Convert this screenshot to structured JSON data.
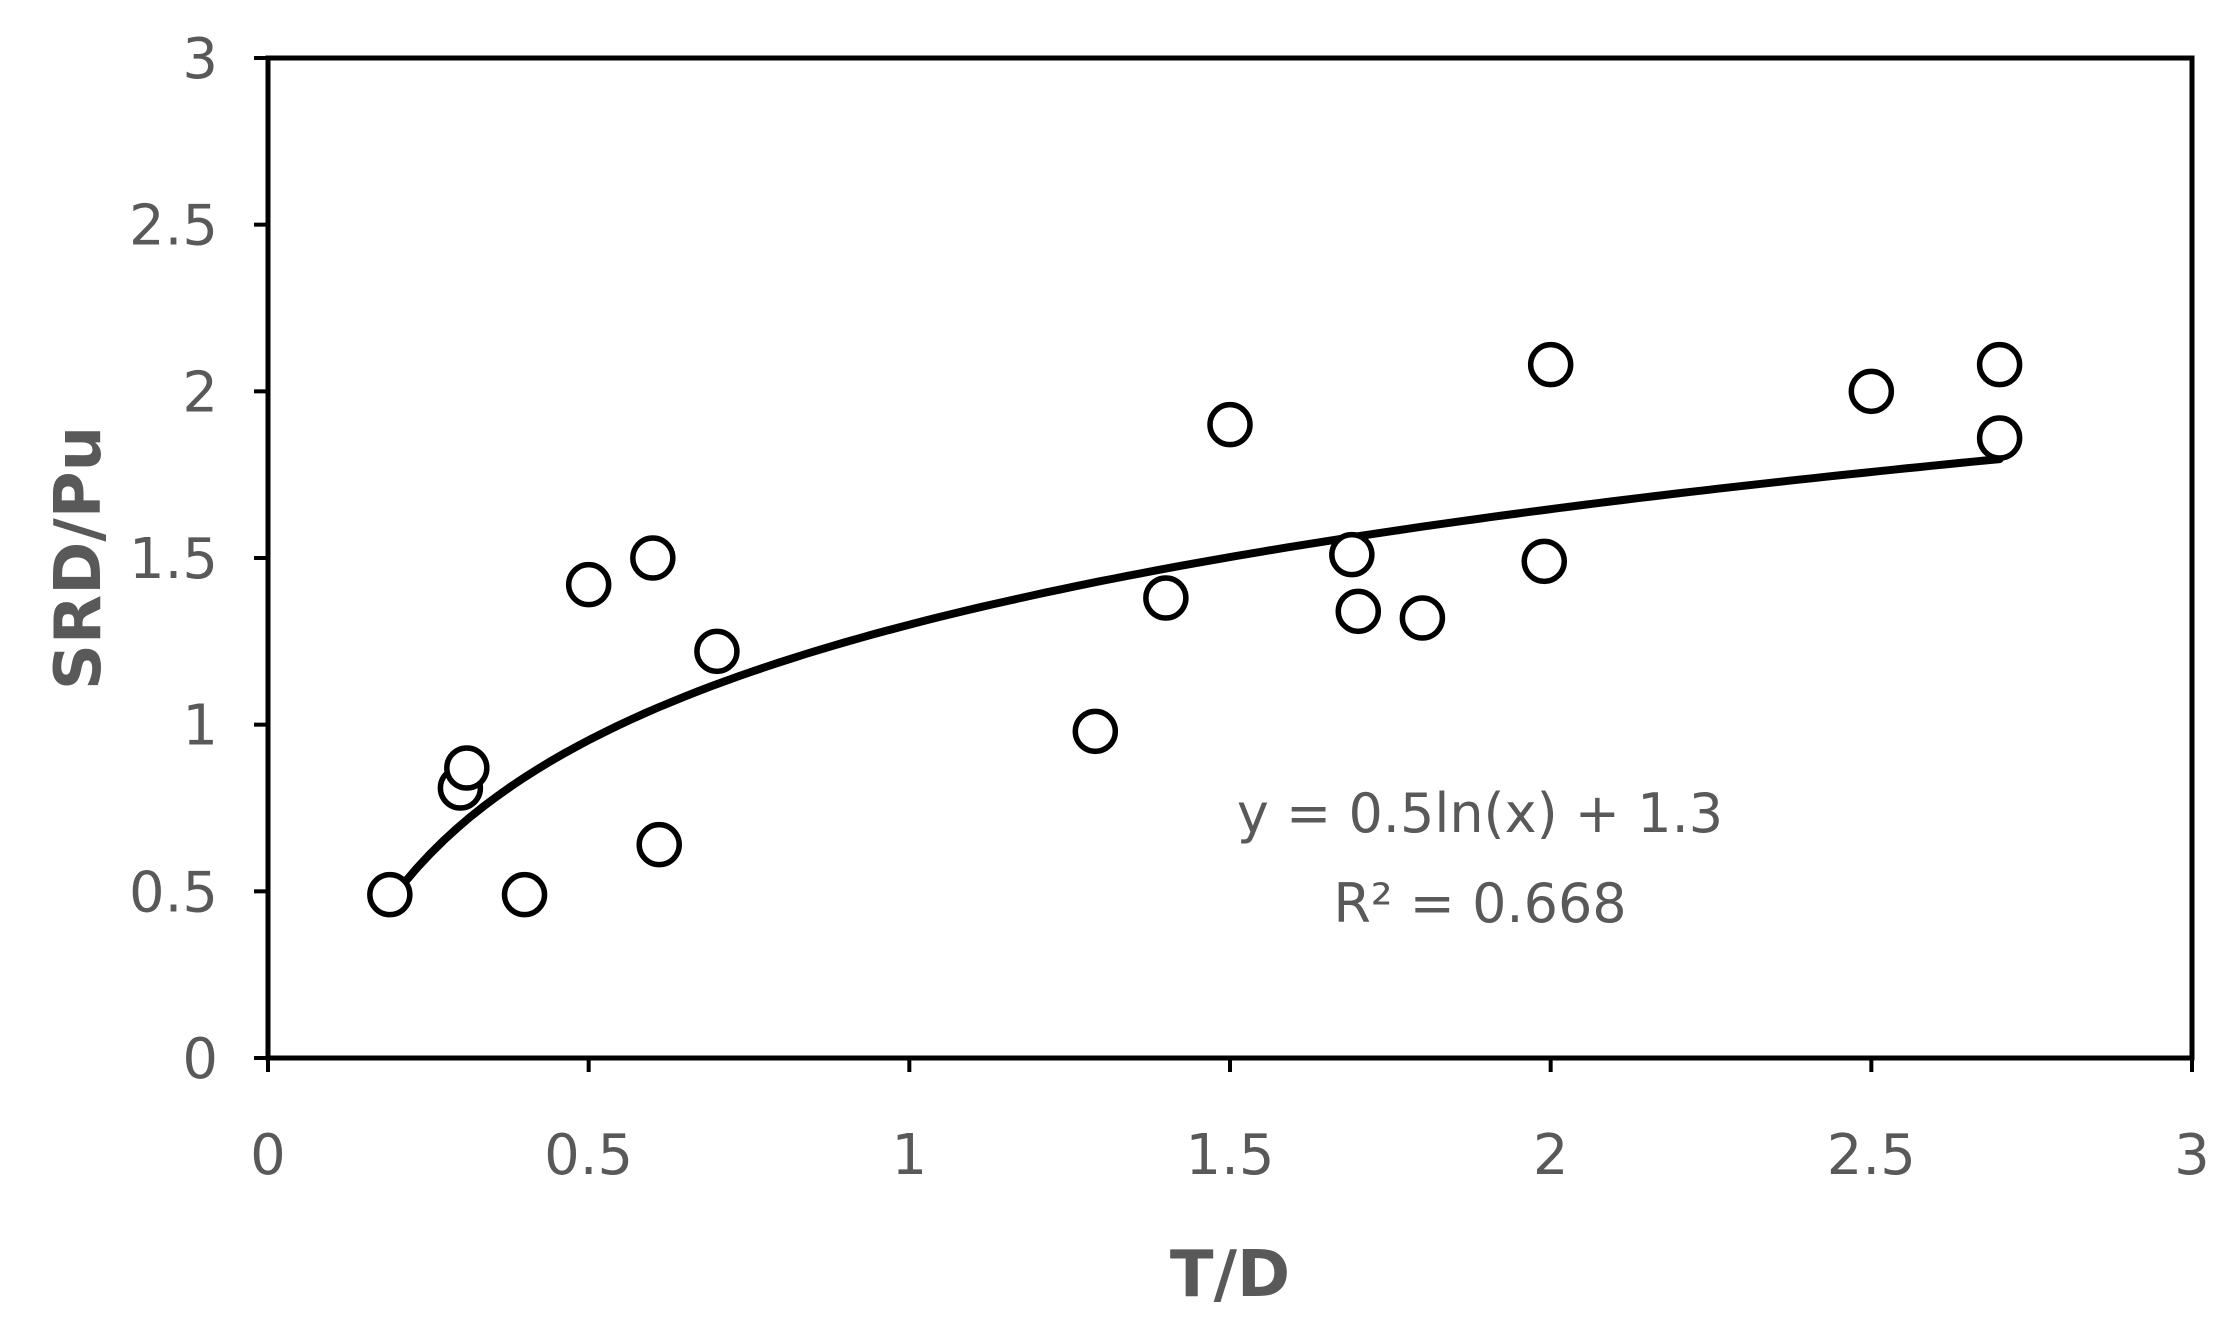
{
  "chart_data": {
    "type": "scatter",
    "title": "",
    "xlabel": "T/D",
    "ylabel": "SRD/Pu",
    "xlim": [
      0,
      3
    ],
    "ylim": [
      0,
      3
    ],
    "x_ticks": [
      "0",
      "0.5",
      "1",
      "1.5",
      "2",
      "2.5",
      "3"
    ],
    "y_ticks": [
      "0",
      "0.5",
      "1",
      "1.5",
      "2",
      "2.5",
      "3"
    ],
    "grid": false,
    "legend": "none",
    "points": [
      {
        "x": 0.19,
        "y": 0.49
      },
      {
        "x": 0.3,
        "y": 0.81
      },
      {
        "x": 0.31,
        "y": 0.87
      },
      {
        "x": 0.4,
        "y": 0.49
      },
      {
        "x": 0.5,
        "y": 1.42
      },
      {
        "x": 0.6,
        "y": 1.5
      },
      {
        "x": 0.61,
        "y": 0.64
      },
      {
        "x": 0.7,
        "y": 1.22
      },
      {
        "x": 1.29,
        "y": 0.98
      },
      {
        "x": 1.4,
        "y": 1.38
      },
      {
        "x": 1.5,
        "y": 1.9
      },
      {
        "x": 1.69,
        "y": 1.51
      },
      {
        "x": 1.7,
        "y": 1.34
      },
      {
        "x": 1.8,
        "y": 1.32
      },
      {
        "x": 1.99,
        "y": 1.49
      },
      {
        "x": 2.0,
        "y": 2.08
      },
      {
        "x": 2.5,
        "y": 2.0
      },
      {
        "x": 2.7,
        "y": 2.08
      },
      {
        "x": 2.7,
        "y": 1.86
      }
    ],
    "trendline": {
      "type": "logarithmic",
      "a": 0.5,
      "b": 1.3,
      "x_range": [
        0.19,
        2.7
      ]
    },
    "annotations": {
      "equation": "y = 0.5ln(x) + 1.3",
      "r_squared": "R² = 0.668"
    },
    "colors": {
      "marker": "#000000",
      "trendline": "#000000",
      "axis": "#000000",
      "text": "#595959"
    }
  }
}
